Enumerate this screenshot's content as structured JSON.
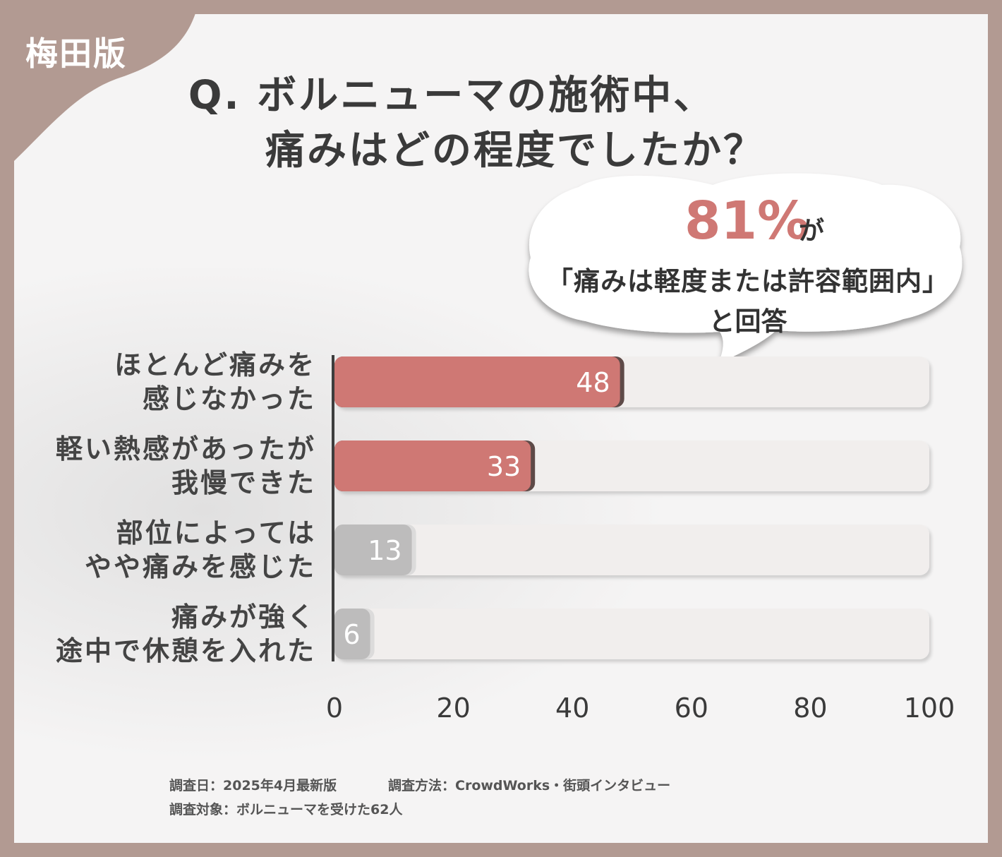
{
  "badge": "梅田版",
  "title": {
    "line1": "Q. ボルニューマの施術中、",
    "line2": "痛みはどの程度でしたか？"
  },
  "callout": {
    "percent": "81%",
    "suffix": "が",
    "line2": "「痛みは軽度または許容範囲内」",
    "line3": "と回答"
  },
  "chart_data": {
    "type": "bar",
    "orientation": "horizontal",
    "categories": [
      [
        "ほとんど痛みを",
        "感じなかった"
      ],
      [
        "軽い熱感があったが",
        "我慢できた"
      ],
      [
        "部位によっては",
        "やや痛みを感じた"
      ],
      [
        "痛みが強く",
        "途中で休憩を入れた"
      ]
    ],
    "values": [
      48,
      33,
      13,
      6
    ],
    "xlim": [
      0,
      100
    ],
    "xticks": [
      "0",
      "20",
      "40",
      "60",
      "80",
      "100"
    ],
    "grid": false,
    "colors": {
      "highlight": "#cf7874",
      "highlight_shadow": "#5e4a48",
      "muted": "#bdbcbc",
      "muted_light": "#dcdbdb",
      "track": "#f1eeed"
    }
  },
  "footer": {
    "date": "調査日：2025年4月最新版",
    "method": "調査方法：CrowdWorks・街頭インタビュー",
    "target": "調査対象：ボルニューマを受けた62人"
  }
}
